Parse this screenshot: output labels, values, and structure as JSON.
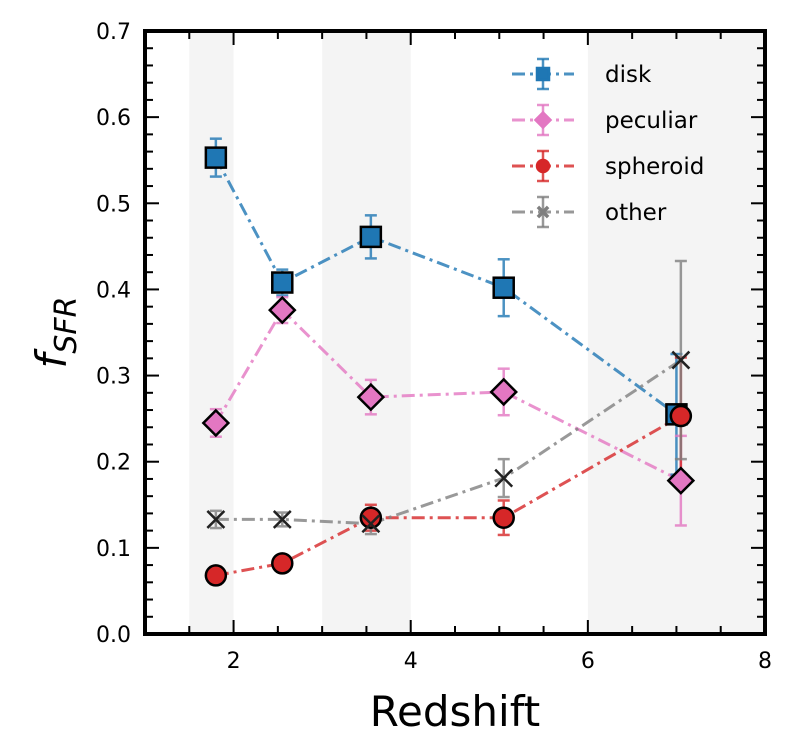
{
  "chart_data": {
    "type": "line",
    "xlabel": "Redshift",
    "ylabel": "f",
    "ylabel_subscript": "SFR",
    "xlim": [
      1,
      8
    ],
    "ylim": [
      0,
      0.7
    ],
    "x_ticks": [
      "2",
      "4",
      "6",
      "8"
    ],
    "x_tick_values": [
      2,
      4,
      6,
      8
    ],
    "y_ticks": [
      "0.0",
      "0.1",
      "0.2",
      "0.3",
      "0.4",
      "0.5",
      "0.6",
      "0.7"
    ],
    "y_tick_values": [
      0,
      0.1,
      0.2,
      0.3,
      0.4,
      0.5,
      0.6,
      0.7
    ],
    "shaded_bands": [
      [
        1.5,
        2.0
      ],
      [
        3.0,
        4.0
      ],
      [
        6.0,
        8.0
      ]
    ],
    "legend_position": "top-right",
    "series": [
      {
        "name": "disk",
        "color": "#1f77b4",
        "marker": "square",
        "x": [
          1.8,
          2.55,
          3.55,
          5.05,
          7.0
        ],
        "y": [
          0.553,
          0.408,
          0.461,
          0.402,
          0.255
        ],
        "err": [
          0.022,
          0.015,
          0.025,
          0.033,
          0.07
        ]
      },
      {
        "name": "peculiar",
        "color": "#e377c2",
        "marker": "diamond",
        "x": [
          1.8,
          2.55,
          3.55,
          5.05,
          7.05
        ],
        "y": [
          0.245,
          0.376,
          0.275,
          0.281,
          0.178
        ],
        "err": [
          0.016,
          0.015,
          0.02,
          0.027,
          0.052
        ]
      },
      {
        "name": "spheroid",
        "color": "#d62728",
        "marker": "circle",
        "x": [
          1.8,
          2.55,
          3.55,
          5.05,
          7.05
        ],
        "y": [
          0.068,
          0.082,
          0.135,
          0.135,
          0.253
        ],
        "err": [
          0.01,
          0.009,
          0.015,
          0.02,
          0.068
        ]
      },
      {
        "name": "other",
        "color": "#7f7f7f",
        "marker": "x",
        "x": [
          1.8,
          2.55,
          3.55,
          5.05,
          7.05
        ],
        "y": [
          0.133,
          0.133,
          0.128,
          0.181,
          0.318
        ],
        "err": [
          0.01,
          0.008,
          0.012,
          0.022,
          0.115
        ]
      }
    ]
  }
}
